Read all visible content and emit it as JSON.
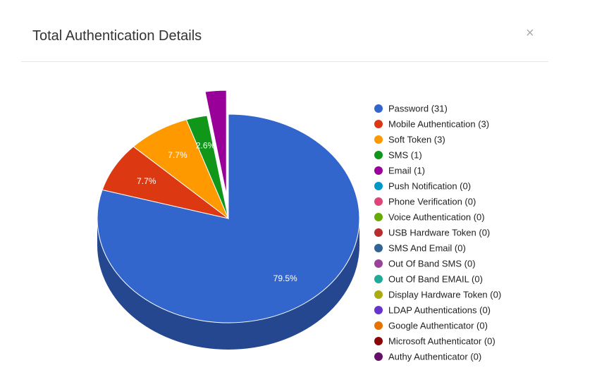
{
  "header": {
    "title": "Total Authentication Details",
    "close": "×"
  },
  "chart_data": {
    "type": "pie",
    "categories": [
      "Password (31)",
      "Mobile Authentication (3)",
      "Soft Token (3)",
      "SMS (1)",
      "Email (1)",
      "Push Notification (0)",
      "Phone Verification (0)",
      "Voice Authentication (0)",
      "USB Hardware Token (0)",
      "SMS And Email (0)",
      "Out Of Band SMS (0)",
      "Out Of Band EMAIL (0)",
      "Display Hardware Token (0)",
      "LDAP Authentications (0)",
      "Google Authenticator (0)",
      "Microsoft Authenticator (0)",
      "Authy Authenticator (0)"
    ],
    "values": [
      79.5,
      7.7,
      7.7,
      2.6,
      2.6,
      0,
      0,
      0,
      0,
      0,
      0,
      0,
      0,
      0,
      0,
      0,
      0
    ],
    "value_labels": [
      "79.5%",
      "7.7%",
      "7.7%",
      "2.6%",
      null,
      null,
      null,
      null,
      null,
      null,
      null,
      null,
      null,
      null,
      null,
      null,
      null
    ],
    "colors": [
      "#3366cc",
      "#dc3912",
      "#ff9900",
      "#109618",
      "#990099",
      "#0099c6",
      "#dd4477",
      "#66aa00",
      "#b82e2e",
      "#316395",
      "#994499",
      "#22aa99",
      "#aaaa11",
      "#6633cc",
      "#e67300",
      "#8b0707",
      "#651067"
    ],
    "is3D": true
  }
}
